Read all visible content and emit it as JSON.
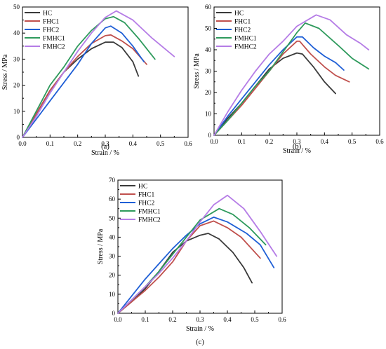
{
  "chart_data": [
    {
      "type": "line",
      "panel_label": "(a)",
      "xlabel": "Strain  / %",
      "ylabel": "Stress / MPa",
      "xlim": [
        0,
        0.6
      ],
      "ylim": [
        0,
        50
      ],
      "xticks": [
        "0.0",
        "0.1",
        "0.2",
        "0.3",
        "0.4",
        "0.5",
        "0.6"
      ],
      "yticks": [
        "0",
        "10",
        "20",
        "30",
        "40",
        "50"
      ],
      "xtick_values": [
        0,
        0.1,
        0.2,
        0.3,
        0.4,
        0.5,
        0.6
      ],
      "ytick_values": [
        0,
        10,
        20,
        30,
        40,
        50
      ],
      "legend_position": "top-left",
      "series": [
        {
          "name": "HC",
          "color": "#3a3a3a",
          "points": [
            [
              0,
              0
            ],
            [
              0.05,
              9
            ],
            [
              0.1,
              18
            ],
            [
              0.15,
              25
            ],
            [
              0.2,
              30
            ],
            [
              0.25,
              34
            ],
            [
              0.3,
              36.5
            ],
            [
              0.33,
              36.5
            ],
            [
              0.36,
              34.5
            ],
            [
              0.4,
              29
            ],
            [
              0.42,
              23.5
            ]
          ]
        },
        {
          "name": "FHC1",
          "color": "#c0504d",
          "points": [
            [
              0,
              0
            ],
            [
              0.05,
              9
            ],
            [
              0.1,
              18
            ],
            [
              0.15,
              25
            ],
            [
              0.2,
              31
            ],
            [
              0.25,
              36
            ],
            [
              0.3,
              39
            ],
            [
              0.32,
              39.3
            ],
            [
              0.36,
              37
            ],
            [
              0.4,
              34
            ],
            [
              0.45,
              28
            ]
          ]
        },
        {
          "name": "FHC2",
          "color": "#1f5fd6",
          "points": [
            [
              0,
              0
            ],
            [
              0.05,
              7
            ],
            [
              0.1,
              14
            ],
            [
              0.15,
              21
            ],
            [
              0.2,
              28
            ],
            [
              0.25,
              36
            ],
            [
              0.3,
              42
            ],
            [
              0.32,
              42.7
            ],
            [
              0.36,
              40
            ],
            [
              0.4,
              35
            ],
            [
              0.44,
              29
            ]
          ]
        },
        {
          "name": "FMHC1",
          "color": "#2e9a5c",
          "points": [
            [
              0,
              0
            ],
            [
              0.05,
              10
            ],
            [
              0.1,
              20
            ],
            [
              0.15,
              27
            ],
            [
              0.2,
              35
            ],
            [
              0.25,
              41
            ],
            [
              0.3,
              45.5
            ],
            [
              0.33,
              46.3
            ],
            [
              0.37,
              44
            ],
            [
              0.42,
              38
            ],
            [
              0.48,
              30
            ]
          ]
        },
        {
          "name": "FMHC2",
          "color": "#b57ce6",
          "points": [
            [
              0,
              0
            ],
            [
              0.05,
              8
            ],
            [
              0.1,
              17
            ],
            [
              0.15,
              25
            ],
            [
              0.2,
              33
            ],
            [
              0.25,
              40
            ],
            [
              0.3,
              46
            ],
            [
              0.34,
              48.5
            ],
            [
              0.4,
              45
            ],
            [
              0.47,
              38
            ],
            [
              0.55,
              31
            ]
          ]
        }
      ]
    },
    {
      "type": "line",
      "panel_label": "(b)",
      "xlabel": "Strain  / %",
      "ylabel": "Stress / MPa",
      "xlim": [
        0,
        0.6
      ],
      "ylim": [
        0,
        60
      ],
      "xticks": [
        "0.0",
        "0.1",
        "0.2",
        "0.3",
        "0.4",
        "0.5",
        "0.6"
      ],
      "yticks": [
        "0",
        "10",
        "20",
        "30",
        "40",
        "50",
        "60"
      ],
      "xtick_values": [
        0,
        0.1,
        0.2,
        0.3,
        0.4,
        0.5,
        0.6
      ],
      "ytick_values": [
        0,
        10,
        20,
        30,
        40,
        50,
        60
      ],
      "legend_position": "top-left",
      "series": [
        {
          "name": "HC",
          "color": "#3a3a3a",
          "points": [
            [
              0,
              0
            ],
            [
              0.05,
              8
            ],
            [
              0.1,
              15
            ],
            [
              0.15,
              23
            ],
            [
              0.2,
              31
            ],
            [
              0.25,
              36
            ],
            [
              0.3,
              38.5
            ],
            [
              0.32,
              38
            ],
            [
              0.36,
              32
            ],
            [
              0.4,
              25
            ],
            [
              0.44,
              19.5
            ]
          ]
        },
        {
          "name": "FHC1",
          "color": "#c0504d",
          "points": [
            [
              0,
              0
            ],
            [
              0.05,
              7
            ],
            [
              0.1,
              14
            ],
            [
              0.15,
              22
            ],
            [
              0.2,
              30
            ],
            [
              0.25,
              38
            ],
            [
              0.3,
              44
            ],
            [
              0.31,
              44
            ],
            [
              0.35,
              38
            ],
            [
              0.4,
              32
            ],
            [
              0.44,
              28
            ],
            [
              0.49,
              25
            ]
          ]
        },
        {
          "name": "FHC2",
          "color": "#1f5fd6",
          "points": [
            [
              0,
              0
            ],
            [
              0.05,
              9
            ],
            [
              0.1,
              17
            ],
            [
              0.15,
              25
            ],
            [
              0.2,
              33
            ],
            [
              0.25,
              40
            ],
            [
              0.3,
              46
            ],
            [
              0.32,
              46
            ],
            [
              0.36,
              41
            ],
            [
              0.4,
              37
            ],
            [
              0.44,
              34
            ],
            [
              0.47,
              30.5
            ]
          ]
        },
        {
          "name": "FMHC1",
          "color": "#2e9a5c",
          "points": [
            [
              0,
              0
            ],
            [
              0.05,
              7
            ],
            [
              0.1,
              15
            ],
            [
              0.15,
              23
            ],
            [
              0.2,
              30
            ],
            [
              0.25,
              39
            ],
            [
              0.3,
              48
            ],
            [
              0.33,
              52.5
            ],
            [
              0.38,
              50
            ],
            [
              0.45,
              42
            ],
            [
              0.5,
              36
            ],
            [
              0.56,
              31
            ]
          ]
        },
        {
          "name": "FMHC2",
          "color": "#b57ce6",
          "points": [
            [
              0,
              0
            ],
            [
              0.05,
              11
            ],
            [
              0.1,
              21
            ],
            [
              0.15,
              30
            ],
            [
              0.2,
              38
            ],
            [
              0.25,
              44
            ],
            [
              0.3,
              51
            ],
            [
              0.37,
              56.3
            ],
            [
              0.42,
              54
            ],
            [
              0.48,
              47
            ],
            [
              0.53,
              43
            ],
            [
              0.56,
              40
            ]
          ]
        }
      ]
    },
    {
      "type": "line",
      "panel_label": "(c)",
      "xlabel": "Strain  / %",
      "ylabel": "Stress / MPa",
      "xlim": [
        0,
        0.6
      ],
      "ylim": [
        0,
        70
      ],
      "xticks": [
        "0.0",
        "0.1",
        "0.2",
        "0.3",
        "0.4",
        "0.5",
        "0.6"
      ],
      "yticks": [
        "0",
        "10",
        "20",
        "30",
        "40",
        "50",
        "60",
        "70"
      ],
      "xtick_values": [
        0,
        0.1,
        0.2,
        0.3,
        0.4,
        0.5,
        0.6
      ],
      "ytick_values": [
        0,
        10,
        20,
        30,
        40,
        50,
        60,
        70
      ],
      "legend_position": "top-left",
      "series": [
        {
          "name": "HC",
          "color": "#3a3a3a",
          "points": [
            [
              0,
              0
            ],
            [
              0.05,
              6
            ],
            [
              0.1,
              13
            ],
            [
              0.15,
              22
            ],
            [
              0.2,
              32
            ],
            [
              0.25,
              38
            ],
            [
              0.3,
              41
            ],
            [
              0.33,
              42
            ],
            [
              0.37,
              39
            ],
            [
              0.42,
              32
            ],
            [
              0.46,
              24
            ],
            [
              0.49,
              16
            ]
          ]
        },
        {
          "name": "FHC1",
          "color": "#c0504d",
          "points": [
            [
              0,
              0
            ],
            [
              0.05,
              6
            ],
            [
              0.1,
              12
            ],
            [
              0.15,
              19
            ],
            [
              0.2,
              27
            ],
            [
              0.25,
              38
            ],
            [
              0.3,
              46
            ],
            [
              0.35,
              48.5
            ],
            [
              0.4,
              45
            ],
            [
              0.45,
              40
            ],
            [
              0.52,
              29
            ]
          ]
        },
        {
          "name": "FHC2",
          "color": "#1f5fd6",
          "points": [
            [
              0,
              0
            ],
            [
              0.05,
              9
            ],
            [
              0.1,
              18
            ],
            [
              0.15,
              26
            ],
            [
              0.2,
              34
            ],
            [
              0.25,
              41
            ],
            [
              0.3,
              47
            ],
            [
              0.35,
              50.5
            ],
            [
              0.4,
              48
            ],
            [
              0.47,
              42
            ],
            [
              0.52,
              36
            ],
            [
              0.57,
              24
            ]
          ]
        },
        {
          "name": "FMHC1",
          "color": "#2e9a5c",
          "points": [
            [
              0,
              0
            ],
            [
              0.05,
              7
            ],
            [
              0.1,
              14
            ],
            [
              0.15,
              22
            ],
            [
              0.2,
              31
            ],
            [
              0.25,
              40
            ],
            [
              0.3,
              49
            ],
            [
              0.37,
              55
            ],
            [
              0.42,
              52
            ],
            [
              0.48,
              45
            ],
            [
              0.54,
              36
            ]
          ]
        },
        {
          "name": "FMHC2",
          "color": "#b57ce6",
          "points": [
            [
              0,
              0
            ],
            [
              0.05,
              7
            ],
            [
              0.1,
              14
            ],
            [
              0.15,
              21
            ],
            [
              0.2,
              29
            ],
            [
              0.25,
              38
            ],
            [
              0.3,
              48
            ],
            [
              0.35,
              57
            ],
            [
              0.4,
              62
            ],
            [
              0.46,
              55
            ],
            [
              0.52,
              43
            ],
            [
              0.58,
              30
            ]
          ]
        }
      ]
    }
  ]
}
